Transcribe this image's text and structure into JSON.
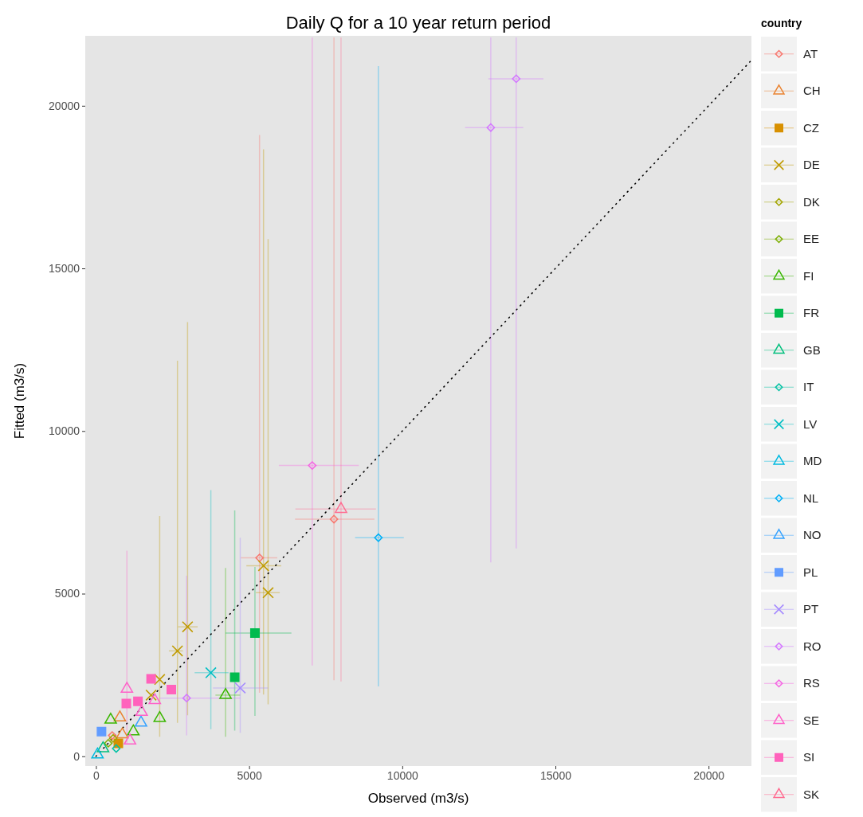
{
  "chart_data": {
    "type": "scatter",
    "title": "Daily Q for a 10 year return period",
    "xlabel": "Observed (m3/s)",
    "ylabel": "Fitted (m3/s)",
    "legend_title": "country",
    "legend": "right",
    "xlim": [
      -350,
      21400
    ],
    "ylim": [
      -300,
      22150
    ],
    "xticks": [
      0,
      5000,
      10000,
      15000,
      20000
    ],
    "yticks": [
      0,
      5000,
      10000,
      15000,
      20000
    ],
    "series": [
      {
        "name": "AT",
        "color": "#F8766D",
        "marker": "diamond",
        "x": [
          7770,
          5340,
          530
        ],
        "values": [
          7290,
          6100,
          640
        ],
        "errors": [
          [
            2340,
            22100
          ],
          [
            1950,
            19100
          ],
          null
        ],
        "xerrors": [
          [
            6500,
            9090
          ],
          [
            4730,
            5920
          ],
          null
        ]
      },
      {
        "name": "CH",
        "color": "#EA8331",
        "marker": "triangle",
        "x": [
          780,
          860
        ],
        "values": [
          1190,
          670
        ]
      },
      {
        "name": "CZ",
        "color": "#D89000",
        "marker": "square",
        "x": [
          730
        ],
        "values": [
          400
        ]
      },
      {
        "name": "DE",
        "color": "#C09B00",
        "marker": "cross",
        "x": [
          5470,
          5620,
          2990,
          2660,
          2080,
          1800
        ],
        "values": [
          5860,
          5030,
          3980,
          3240,
          2360,
          1880
        ],
        "errors": [
          [
            1900,
            18660
          ],
          [
            1600,
            15900
          ],
          [
            1260,
            13350
          ],
          [
            1030,
            12160
          ],
          [
            600,
            7390
          ],
          null
        ],
        "xerrors": [
          [
            4910,
            6050
          ],
          [
            5220,
            6000
          ],
          [
            2680,
            3320
          ],
          [
            2380,
            2840
          ],
          null,
          null
        ]
      },
      {
        "name": "DK",
        "color": "#A3A500",
        "marker": "diamond",
        "x": [
          560
        ],
        "values": [
          550
        ]
      },
      {
        "name": "EE",
        "color": "#7CAE00",
        "marker": "diamond",
        "x": [
          400
        ],
        "values": [
          400
        ]
      },
      {
        "name": "FI",
        "color": "#39B600",
        "marker": "triangle",
        "x": [
          4230,
          2080,
          480,
          1220
        ],
        "values": [
          1880,
          1170,
          1120,
          760
        ],
        "errors": [
          [
            600,
            5790
          ],
          null,
          null,
          null
        ],
        "xerrors": [
          [
            3900,
            4710
          ],
          null,
          null,
          null
        ]
      },
      {
        "name": "FR",
        "color": "#00BB4E",
        "marker": "square",
        "x": [
          5190,
          4530
        ],
        "values": [
          3790,
          2430
        ],
        "errors": [
          [
            1240,
            5820
          ],
          [
            790,
            7560
          ]
        ],
        "xerrors": [
          [
            4230,
            6380
          ],
          null
        ]
      },
      {
        "name": "GB",
        "color": "#00BF7D",
        "marker": "triangle",
        "x": [
          230
        ],
        "values": [
          240
        ]
      },
      {
        "name": "IT",
        "color": "#00C1A3",
        "marker": "diamond",
        "x": [
          660
        ],
        "values": [
          240
        ]
      },
      {
        "name": "LV",
        "color": "#00BFC4",
        "marker": "cross",
        "x": [
          3750
        ],
        "values": [
          2570
        ],
        "errors": [
          [
            830,
            8180
          ]
        ],
        "xerrors": [
          [
            3220,
            4330
          ]
        ]
      },
      {
        "name": "MD",
        "color": "#00BAE0",
        "marker": "triangle",
        "x": [
          50
        ],
        "values": [
          50
        ]
      },
      {
        "name": "NL",
        "color": "#00B0F6",
        "marker": "diamond",
        "x": [
          9220
        ],
        "values": [
          6720
        ],
        "errors": [
          [
            2150,
            21220
          ]
        ],
        "xerrors": [
          [
            8460,
            10050
          ]
        ]
      },
      {
        "name": "NO",
        "color": "#35A2FF",
        "marker": "triangle",
        "x": [
          1470
        ],
        "values": [
          1030
        ]
      },
      {
        "name": "PL",
        "color": "#619CFF",
        "marker": "square",
        "x": [
          180
        ],
        "values": [
          760
        ]
      },
      {
        "name": "PT",
        "color": "#A58AFF",
        "marker": "cross",
        "x": [
          4710
        ],
        "values": [
          2100
        ],
        "errors": [
          [
            720,
            6720
          ]
        ],
        "xerrors": [
          [
            3820,
            5620
          ]
        ]
      },
      {
        "name": "RO",
        "color": "#D376FF",
        "marker": "diamond",
        "x": [
          13720,
          12890,
          2960
        ],
        "values": [
          20830,
          19330,
          1790
        ],
        "errors": [
          [
            6390,
            22100
          ],
          [
            5960,
            22100
          ],
          [
            640,
            5550
          ]
        ],
        "xerrors": [
          [
            12810,
            14610
          ],
          [
            12050,
            13950
          ],
          [
            2080,
            4710
          ]
        ]
      },
      {
        "name": "RS",
        "color": "#F564E3",
        "marker": "diamond",
        "x": [
          7060
        ],
        "values": [
          8940
        ],
        "errors": [
          [
            2790,
            22100
          ]
        ],
        "xerrors": [
          [
            5970,
            8580
          ]
        ]
      },
      {
        "name": "SE",
        "color": "#FF61C9",
        "marker": "triangle",
        "x": [
          1010,
          1920,
          1490,
          1110
        ],
        "values": [
          2070,
          1720,
          1360,
          480
        ],
        "errors": [
          [
            400,
            6320
          ],
          null,
          null,
          null
        ]
      },
      {
        "name": "SI",
        "color": "#FF62BC",
        "marker": "square",
        "x": [
          1800,
          2460,
          1370,
          990
        ],
        "values": [
          2380,
          2050,
          1690,
          1620
        ]
      },
      {
        "name": "SK",
        "color": "#FF6C91",
        "marker": "triangle",
        "x": [
          8000
        ],
        "values": [
          7600
        ],
        "errors": [
          [
            2300,
            22100
          ]
        ],
        "xerrors": [
          [
            6510,
            9140
          ]
        ]
      },
      {
        "type": "line",
        "color": "#000000",
        "line_style": "dotted",
        "marker": "none",
        "x": [
          0,
          21400
        ],
        "values": [
          0,
          21400
        ]
      }
    ]
  }
}
